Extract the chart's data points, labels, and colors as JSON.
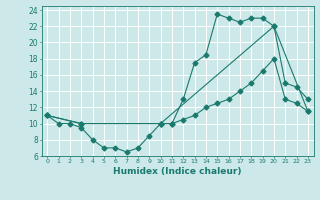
{
  "xlabel": "Humidex (Indice chaleur)",
  "bg_color": "#cce8e8",
  "grid_color": "#ffffff",
  "line_color": "#1a7a6e",
  "xlim": [
    -0.5,
    23.5
  ],
  "ylim": [
    6,
    24.5
  ],
  "yticks": [
    6,
    8,
    10,
    12,
    14,
    16,
    18,
    20,
    22,
    24
  ],
  "xticks": [
    0,
    1,
    2,
    3,
    4,
    5,
    6,
    7,
    8,
    9,
    10,
    11,
    12,
    13,
    14,
    15,
    16,
    17,
    18,
    19,
    20,
    21,
    22,
    23
  ],
  "line1_x": [
    0,
    1,
    2,
    3,
    4,
    5,
    6,
    7,
    8,
    9,
    10,
    11,
    12,
    13,
    14,
    15,
    16,
    17,
    18,
    19,
    20,
    21,
    22,
    23
  ],
  "line1_y": [
    11,
    10,
    10,
    9.5,
    8,
    7,
    7,
    6.5,
    7,
    8.5,
    10,
    10,
    13,
    17.5,
    18.5,
    23.5,
    23,
    22.5,
    23,
    23,
    22,
    15,
    14.5,
    13
  ],
  "line2_x": [
    0,
    3,
    10,
    20,
    23
  ],
  "line2_y": [
    11,
    10,
    10,
    22,
    11.5
  ],
  "line3_x": [
    0,
    3,
    10,
    11,
    12,
    13,
    14,
    15,
    16,
    17,
    18,
    19,
    20,
    21,
    22,
    23
  ],
  "line3_y": [
    11,
    10,
    10,
    10,
    10.5,
    11,
    12,
    12.5,
    13,
    14,
    15,
    16.5,
    18,
    13,
    12.5,
    11.5
  ]
}
